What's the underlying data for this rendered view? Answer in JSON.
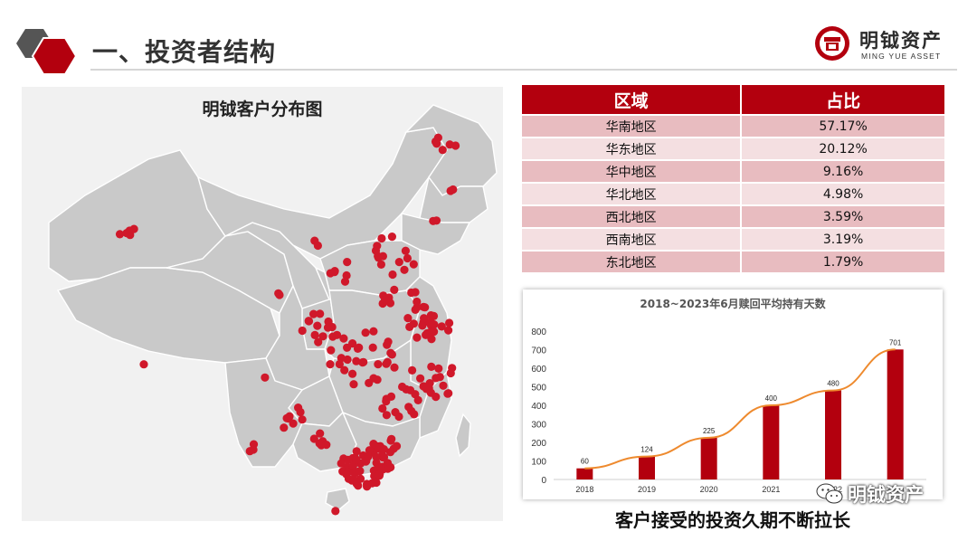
{
  "header": {
    "title": "一、投资者结构"
  },
  "brand": {
    "name": "明钺资产",
    "subtitle": "MING YUE ASSET"
  },
  "map": {
    "title": "明钺客户分布图"
  },
  "table": {
    "headers": [
      "区域",
      "占比"
    ],
    "rows": [
      {
        "region": "华南地区",
        "share": "57.17%"
      },
      {
        "region": "华东地区",
        "share": "20.12%"
      },
      {
        "region": "华中地区",
        "share": "9.16%"
      },
      {
        "region": "华北地区",
        "share": "4.98%"
      },
      {
        "region": "西北地区",
        "share": "3.59%"
      },
      {
        "region": "西南地区",
        "share": "3.19%"
      },
      {
        "region": "东北地区",
        "share": "1.79%"
      }
    ]
  },
  "chart_data": {
    "type": "bar",
    "title": "2018~2023年6月赎回平均持有天数",
    "categories": [
      "2018",
      "2019",
      "2020",
      "2021",
      "2022",
      "2023"
    ],
    "values": [
      60,
      124,
      225,
      400,
      480,
      701
    ],
    "ylim": [
      0,
      800
    ],
    "yticks": [
      0,
      100,
      200,
      300,
      400,
      500,
      600,
      700,
      800
    ],
    "overlay": "line",
    "grid": false
  },
  "caption": "客户接受的投资久期不断拉长",
  "watermark": "明钺资产",
  "colors": {
    "brand_red": "#b3000e",
    "line_orange": "#ee8a2e",
    "dot_red": "#d0182a",
    "map_gray": "#c9c9c9"
  }
}
